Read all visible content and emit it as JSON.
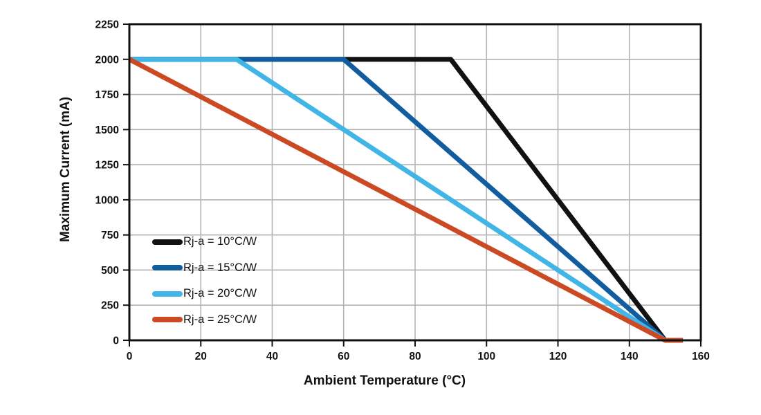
{
  "chart_data": {
    "type": "line",
    "title": "",
    "xlabel": "Ambient Temperature (°C)",
    "ylabel": "Maximum Current (mA)",
    "xlim": [
      0,
      160
    ],
    "ylim": [
      0,
      2250
    ],
    "xticks": [
      0,
      20,
      40,
      60,
      80,
      100,
      120,
      140,
      160
    ],
    "yticks": [
      0,
      250,
      500,
      750,
      1000,
      1250,
      1500,
      1750,
      2000,
      2250
    ],
    "grid": true,
    "legend_position": "inside-lower-left",
    "axis_color": "#111111",
    "grid_color": "#b3b3b3",
    "line_width": 7,
    "series": [
      {
        "name": "Rj-a = 10°C/W",
        "color": "#111111",
        "points": [
          [
            0,
            2000
          ],
          [
            90,
            2000
          ],
          [
            150,
            0
          ]
        ]
      },
      {
        "name": "Rj-a = 15°C/W",
        "color": "#125d9f",
        "points": [
          [
            0,
            2000
          ],
          [
            60,
            2000
          ],
          [
            150,
            0
          ]
        ]
      },
      {
        "name": "Rj-a = 20°C/W",
        "color": "#41b6e6",
        "points": [
          [
            0,
            2000
          ],
          [
            30,
            2000
          ],
          [
            150,
            0
          ]
        ]
      },
      {
        "name": "Rj-a = 25°C/W",
        "color": "#cb4a24",
        "points": [
          [
            0,
            2000
          ],
          [
            150,
            0
          ],
          [
            155,
            0
          ]
        ]
      }
    ]
  }
}
